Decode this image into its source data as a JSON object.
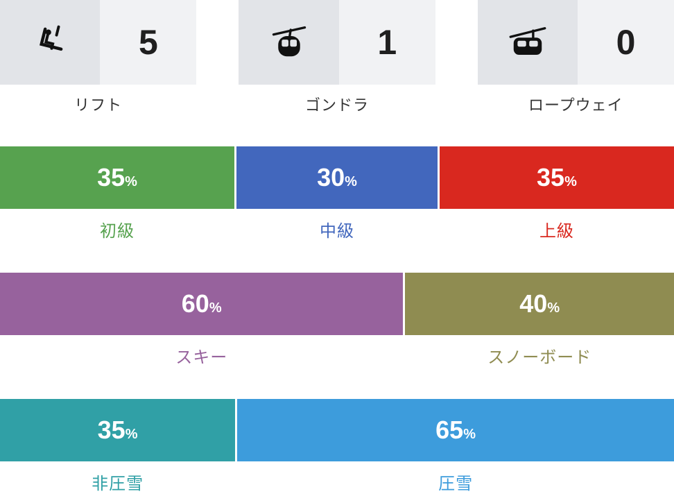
{
  "stats": [
    {
      "icon": "chairlift-icon",
      "value": "5",
      "label": "リフト"
    },
    {
      "icon": "gondola-icon",
      "value": "1",
      "label": "ゴンドラ"
    },
    {
      "icon": "ropeway-icon",
      "value": "0",
      "label": "ロープウェイ"
    }
  ],
  "chart_data": [
    {
      "type": "bar",
      "variant": "stacked-horizontal",
      "title": "",
      "unit": "%",
      "categories": [
        "初級",
        "中級",
        "上級"
      ],
      "values": [
        35,
        30,
        35
      ],
      "colors": [
        "#57a24f",
        "#4267bd",
        "#d9281f"
      ],
      "xlim": [
        0,
        100
      ],
      "grid": false,
      "legend": "labels-below-segments"
    },
    {
      "type": "bar",
      "variant": "stacked-horizontal",
      "title": "",
      "unit": "%",
      "categories": [
        "スキー",
        "スノーボード"
      ],
      "values": [
        60,
        40
      ],
      "colors": [
        "#97629d",
        "#8f8c51"
      ],
      "xlim": [
        0,
        100
      ],
      "grid": false,
      "legend": "labels-below-segments"
    },
    {
      "type": "bar",
      "variant": "stacked-horizontal",
      "title": "",
      "unit": "%",
      "categories": [
        "非圧雪",
        "圧雪"
      ],
      "values": [
        35,
        65
      ],
      "colors": [
        "#30a0a6",
        "#3d9cdc"
      ],
      "xlim": [
        0,
        100
      ],
      "grid": false,
      "legend": "labels-below-segments"
    }
  ],
  "colors": {
    "icon_tile_bg": "#e2e4e8",
    "value_tile_bg": "#f1f2f4",
    "stat_text": "#1f1f1f",
    "stat_label_text": "#333333",
    "segment_text": "#ffffff",
    "gap": "#ffffff"
  }
}
